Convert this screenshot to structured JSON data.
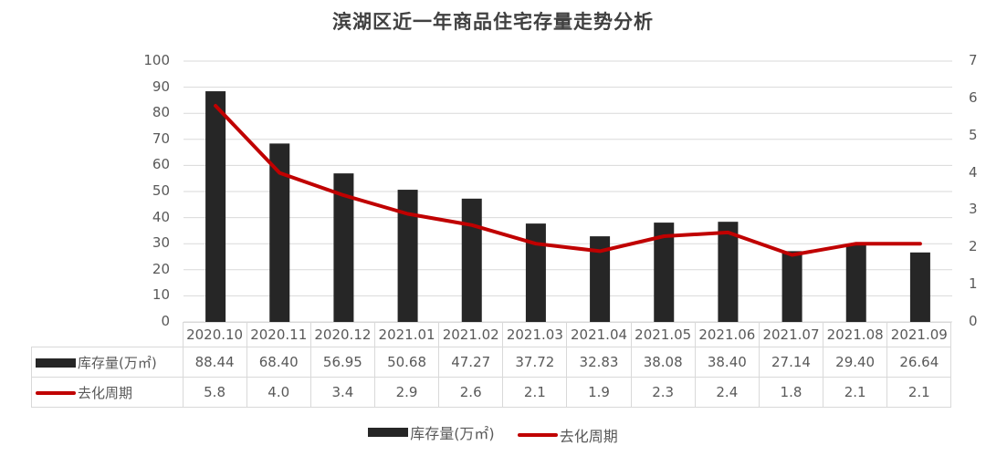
{
  "title": "滨湖区近一年商品住宅存量走势分析",
  "left_axis": {
    "ticks": [
      "100",
      "90",
      "80",
      "70",
      "60",
      "50",
      "40",
      "30",
      "20",
      "10",
      "0"
    ]
  },
  "right_axis": {
    "ticks": [
      "7",
      "6",
      "5",
      "4",
      "3",
      "2",
      "1",
      "0"
    ]
  },
  "table": {
    "categories": [
      "2020.10",
      "2020.11",
      "2020.12",
      "2021.01",
      "2021.02",
      "2021.03",
      "2021.04",
      "2021.05",
      "2021.06",
      "2021.07",
      "2021.08",
      "2021.09"
    ],
    "row1_label": "库存量(万㎡)",
    "row1_values": [
      "88.44",
      "68.40",
      "56.95",
      "50.68",
      "47.27",
      "37.72",
      "32.83",
      "38.08",
      "38.40",
      "27.14",
      "29.40",
      "26.64"
    ],
    "row2_label": "去化周期",
    "row2_values": [
      "5.8",
      "4.0",
      "3.4",
      "2.9",
      "2.6",
      "2.1",
      "1.9",
      "2.3",
      "2.4",
      "1.8",
      "2.1",
      "2.1"
    ]
  },
  "legend": {
    "bar_label": "库存量(万㎡)",
    "line_label": "去化周期"
  },
  "colors": {
    "bar": "#262626",
    "line": "#c00000",
    "grid": "#d9d9d9",
    "text": "#595959"
  },
  "chart_data": {
    "type": "bar",
    "title": "滨湖区近一年商品住宅存量走势分析",
    "categories": [
      "2020.10",
      "2020.11",
      "2020.12",
      "2021.01",
      "2021.02",
      "2021.03",
      "2021.04",
      "2021.05",
      "2021.06",
      "2021.07",
      "2021.08",
      "2021.09"
    ],
    "series": [
      {
        "name": "库存量(万㎡)",
        "type": "bar",
        "axis": "left",
        "values": [
          88.44,
          68.4,
          56.95,
          50.68,
          47.27,
          37.72,
          32.83,
          38.08,
          38.4,
          27.14,
          29.4,
          26.64
        ]
      },
      {
        "name": "去化周期",
        "type": "line",
        "axis": "right",
        "values": [
          5.8,
          4.0,
          3.4,
          2.9,
          2.6,
          2.1,
          1.9,
          2.3,
          2.4,
          1.8,
          2.1,
          2.1
        ]
      }
    ],
    "xlabel": "",
    "ylabel": "",
    "y2label": "",
    "ylim": [
      0,
      100
    ],
    "y2lim": [
      0,
      7
    ],
    "grid": true,
    "data_table": true,
    "legend_position": "bottom"
  }
}
